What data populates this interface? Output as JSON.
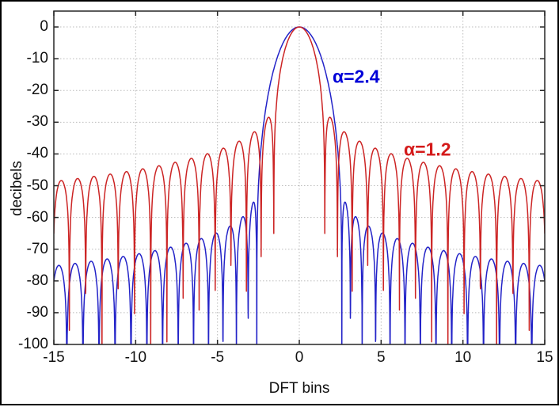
{
  "figure": {
    "background": "#ffffff",
    "outer_border_color": "#000000",
    "frame_color": "#262626",
    "grid_color": "#bbbbbb",
    "tick_label_color": "#111111"
  },
  "chart_data": {
    "type": "line",
    "title": "",
    "xlabel": "DFT bins",
    "ylabel": "decibels",
    "xlim": [
      -15,
      15
    ],
    "ylim": [
      -100,
      5
    ],
    "x_ticks": [
      -15,
      -10,
      -5,
      0,
      5,
      10,
      15
    ],
    "y_ticks": [
      0,
      -10,
      -20,
      -30,
      -40,
      -50,
      -60,
      -70,
      -80,
      -90,
      -100
    ],
    "grid": {
      "show": true,
      "style": "dotted"
    },
    "legend_position": "none",
    "series": [
      {
        "name": "alpha=2.4",
        "color": "#2323c8",
        "model": "kaiser_bessel_window_spectrum_db",
        "alpha": 2.4,
        "x_range_bins": [
          -15,
          15
        ],
        "x_step_bins": 0.01,
        "peak_db": 0,
        "peak_bin": 0,
        "first_null_bin": 2.6,
        "first_sidelobe_db": -55.2,
        "sidelobe_db_at_edge_bins": -75.3,
        "nulls_clipped_at_db": -100
      },
      {
        "name": "alpha=1.2",
        "color": "#cc2424",
        "model": "kaiser_bessel_window_spectrum_db",
        "alpha": 1.2,
        "x_range_bins": [
          -15,
          15
        ],
        "x_step_bins": 0.01,
        "peak_db": 0,
        "peak_bin": 0,
        "first_null_bin": 1.56,
        "first_sidelobe_db": -28.4,
        "sidelobe_db_at_edge_bins": -48.6,
        "nulls_clipped_at_db": -100
      }
    ],
    "annotations": [
      {
        "text": "α=2.4",
        "color": "#0000d8",
        "x_bin": 2.03,
        "y_db": -15.7
      },
      {
        "text": "α=1.2",
        "color": "#d41a1a",
        "x_bin": 6.39,
        "y_db": -38.6
      }
    ]
  }
}
